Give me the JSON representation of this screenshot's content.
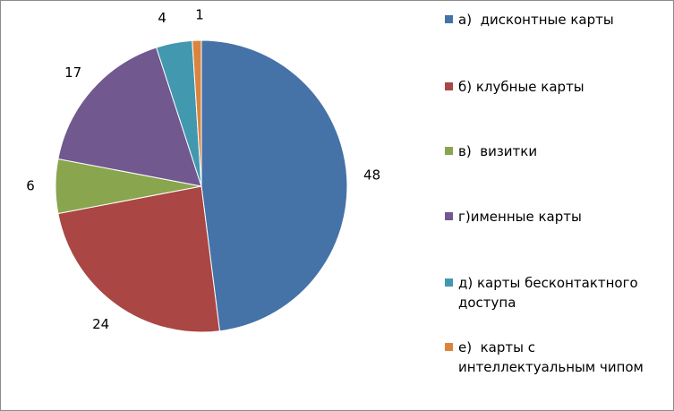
{
  "chart_data": {
    "type": "pie",
    "start_angle_deg": 0,
    "direction": "clockwise",
    "slices": [
      {
        "label": "а)  дисконтные карты",
        "value": 48,
        "color": "#4572a7"
      },
      {
        "label": "б) клубные карты",
        "value": 24,
        "color": "#aa4643"
      },
      {
        "label": "в)  визитки",
        "value": 6,
        "color": "#89a54e"
      },
      {
        "label": "г)именные карты",
        "value": 17,
        "color": "#71588f"
      },
      {
        "label": "д) карты бесконтактного доступа",
        "value": 4,
        "color": "#4198af"
      },
      {
        "label": "е)  карты с интеллектуальным чипом",
        "value": 1,
        "color": "#db843d"
      }
    ],
    "legend_placement": "right",
    "data_labels": true
  }
}
